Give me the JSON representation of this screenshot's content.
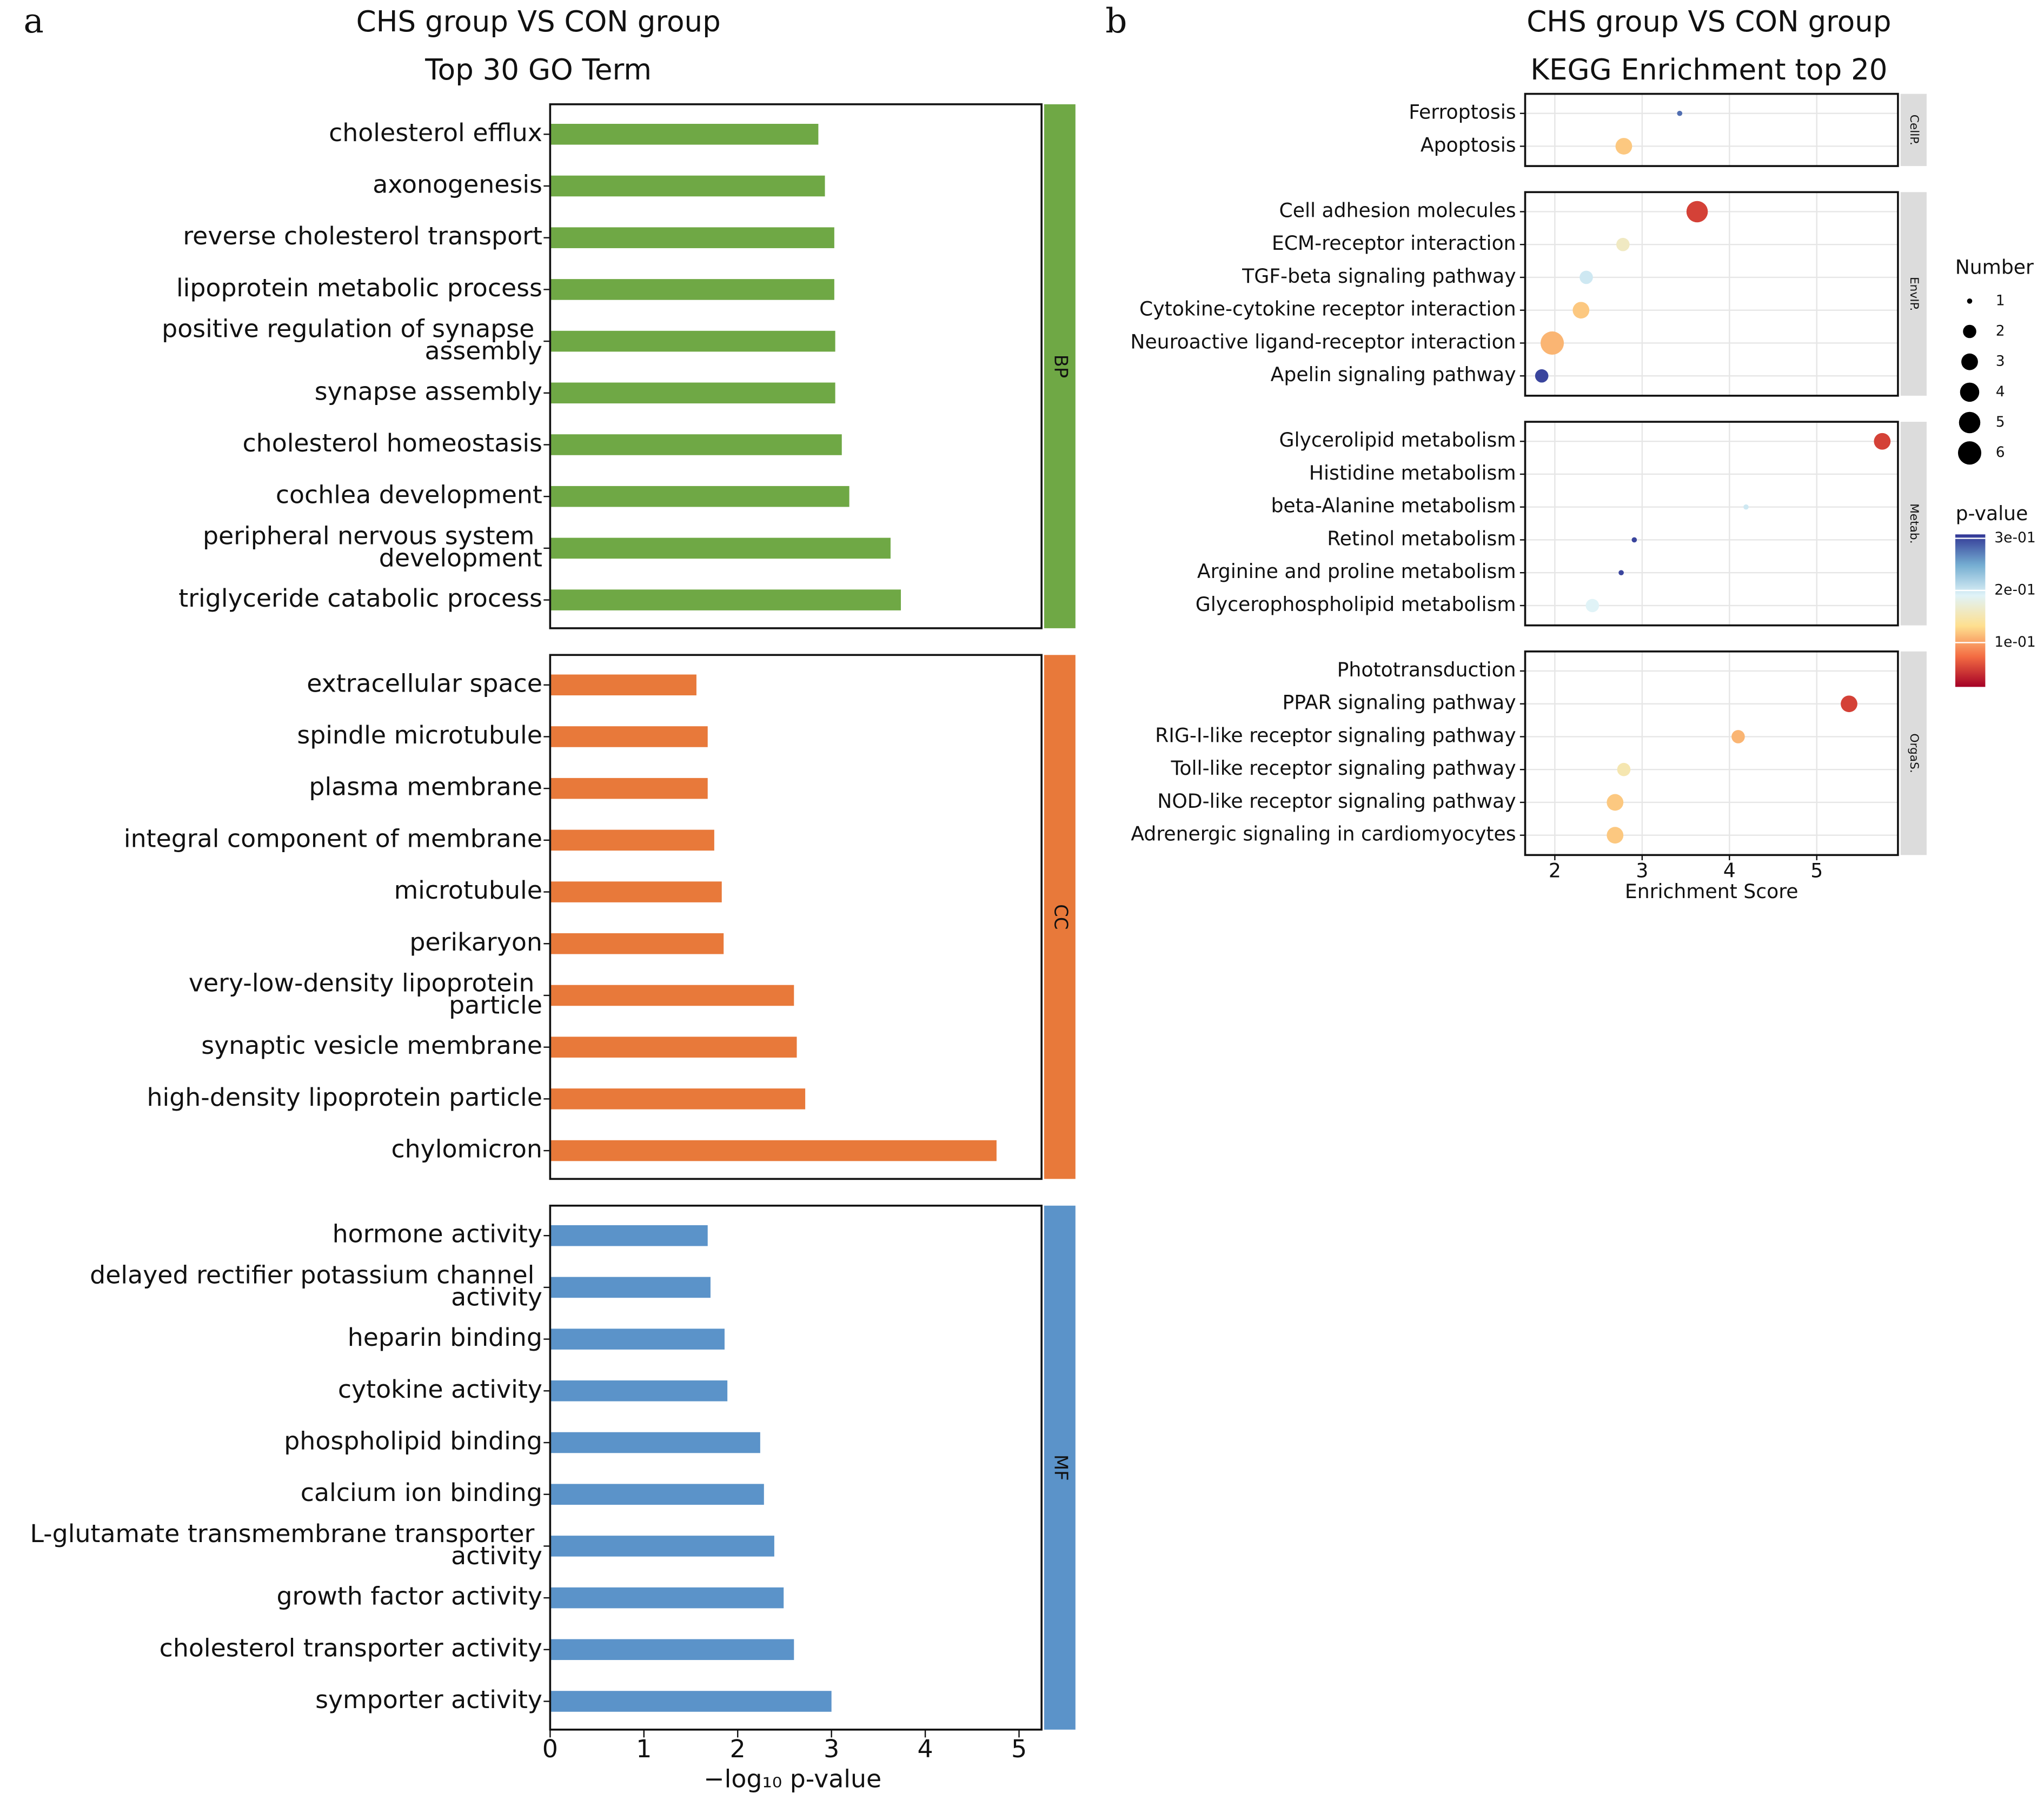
{
  "chart_data": [
    {
      "type": "faceted-bar",
      "panel_label": "a",
      "title": "CHS group VS CON group",
      "subtitle": "Top 30 GO Term",
      "xlabel": "−log₁₀ p-value",
      "xlim": [
        0,
        5.24
      ],
      "xticks": [
        0,
        1,
        2,
        3,
        4,
        5
      ],
      "facets": [
        {
          "name": "BP",
          "color": "#6fa845",
          "categories": [
            "cholesterol efflux",
            "axonogenesis",
            "reverse cholesterol transport",
            "lipoprotein metabolic process",
            "positive regulation of synapse assembly",
            "synapse assembly",
            "cholesterol homeostasis",
            "cochlea development",
            "peripheral nervous system development",
            "triglyceride catabolic process"
          ],
          "values": [
            2.86,
            2.93,
            3.03,
            3.03,
            3.04,
            3.04,
            3.11,
            3.19,
            3.63,
            3.74
          ]
        },
        {
          "name": "CC",
          "color": "#e8793a",
          "categories": [
            "extracellular space",
            "spindle microtubule",
            "plasma membrane",
            "integral component of membrane",
            "microtubule",
            "perikaryon",
            "very-low-density lipoprotein particle",
            "synaptic vesicle membrane",
            "high-density lipoprotein particle",
            "chylomicron"
          ],
          "values": [
            1.56,
            1.68,
            1.68,
            1.75,
            1.83,
            1.85,
            2.6,
            2.63,
            2.72,
            4.76
          ]
        },
        {
          "name": "MF",
          "color": "#5b93c9",
          "categories": [
            "hormone activity",
            "delayed rectifier potassium channel activity",
            "heparin binding",
            "cytokine activity",
            "phospholipid binding",
            "calcium ion binding",
            "L-glutamate transmembrane transporter activity",
            "growth factor activity",
            "cholesterol transporter activity",
            "symporter activity"
          ],
          "values": [
            1.68,
            1.71,
            1.86,
            1.89,
            2.24,
            2.28,
            2.39,
            2.49,
            2.6,
            3.0
          ]
        }
      ]
    },
    {
      "type": "faceted-dot",
      "panel_label": "b",
      "title": "CHS group VS CON group",
      "subtitle": "KEGG Enrichment top 20",
      "xlabel": "Enrichment Score",
      "xlim": [
        1.66,
        5.93
      ],
      "xticks": [
        2,
        3,
        4,
        5
      ],
      "grid": true,
      "facets": [
        {
          "name": "CellP.",
          "categories": [
            "Ferroptosis",
            "Apoptosis"
          ],
          "x": [
            3.43,
            2.79
          ],
          "sizes": [
            1,
            3
          ],
          "pvalues": [
            0.28,
            0.12
          ]
        },
        {
          "name": "EnvIP.",
          "categories": [
            "Cell adhesion molecules",
            "ECM-receptor interaction",
            "TGF-beta signaling pathway",
            "Cytokine-cytokine receptor interaction",
            "Neuroactive ligand-receptor interaction",
            "Apelin signaling pathway"
          ],
          "x": [
            3.63,
            2.78,
            2.36,
            2.3,
            1.97,
            1.85
          ],
          "sizes": [
            5,
            2,
            2,
            3,
            6,
            2
          ],
          "pvalues": [
            0.05,
            0.16,
            0.2,
            0.12,
            0.11,
            0.3
          ]
        },
        {
          "name": "Metab.",
          "categories": [
            "Glycerolipid metabolism",
            "Histidine metabolism",
            "beta-Alanine metabolism",
            "Retinol metabolism",
            "Arginine and proline metabolism",
            "Glycerophospholipid metabolism"
          ],
          "x": [
            5.75,
            null,
            4.19,
            2.91,
            2.76,
            2.43
          ],
          "sizes": [
            3,
            null,
            1,
            1,
            1,
            2
          ],
          "pvalues": [
            0.05,
            null,
            0.2,
            0.3,
            0.3,
            0.19
          ]
        },
        {
          "name": "OrgaS.",
          "categories": [
            "Phototransduction",
            "PPAR signaling pathway",
            "RIG-I-like receptor signaling pathway",
            "Toll-like receptor signaling pathway",
            "NOD-like receptor signaling pathway",
            "Adrenergic signaling in cardiomyocytes"
          ],
          "x": [
            null,
            5.37,
            4.1,
            2.79,
            2.69,
            2.69
          ],
          "sizes": [
            null,
            3,
            2,
            2,
            3,
            3
          ],
          "pvalues": [
            null,
            0.05,
            0.11,
            0.15,
            0.12,
            0.12
          ]
        }
      ],
      "size_legend": {
        "title": "Number",
        "values": [
          1,
          2,
          3,
          4,
          5,
          6
        ]
      },
      "colorbar": {
        "title": "p-value",
        "lim": [
          0.015,
          0.3075
        ],
        "ticks": [
          {
            "value": 0.3,
            "label": "3e-01"
          },
          {
            "value": 0.2,
            "label": "2e-01"
          },
          {
            "value": 0.1,
            "label": "1e-01"
          }
        ],
        "colormap": [
          "#a50026",
          "#f46d43",
          "#fee090",
          "#e0f3f8",
          "#74add1",
          "#313695"
        ]
      }
    }
  ]
}
